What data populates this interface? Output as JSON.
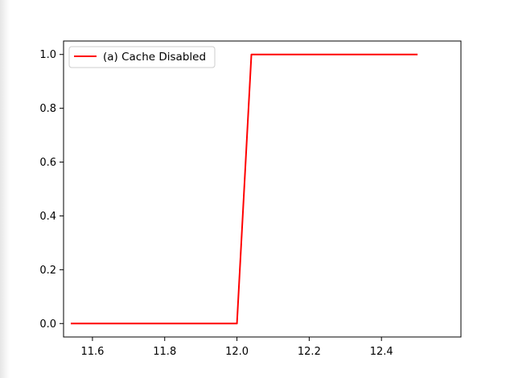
{
  "chart_data": {
    "type": "line",
    "title": "",
    "xlabel": "",
    "ylabel": "",
    "xlim": [
      11.52,
      12.62
    ],
    "ylim": [
      -0.05,
      1.05
    ],
    "xticks": [
      11.6,
      11.8,
      12.0,
      12.2,
      12.4
    ],
    "xtick_labels": [
      "11.6",
      "11.8",
      "12.0",
      "12.2",
      "12.4"
    ],
    "yticks": [
      0.0,
      0.2,
      0.4,
      0.6,
      0.8,
      1.0
    ],
    "ytick_labels": [
      "0.0",
      "0.2",
      "0.4",
      "0.6",
      "0.8",
      "1.0"
    ],
    "grid": false,
    "legend_position": "top-left",
    "series": [
      {
        "name": "(a) Cache Disabled",
        "color": "#ff0000",
        "x": [
          11.54,
          12.0,
          12.04,
          12.5
        ],
        "y": [
          0.0,
          0.0,
          1.0,
          1.0
        ]
      }
    ]
  }
}
